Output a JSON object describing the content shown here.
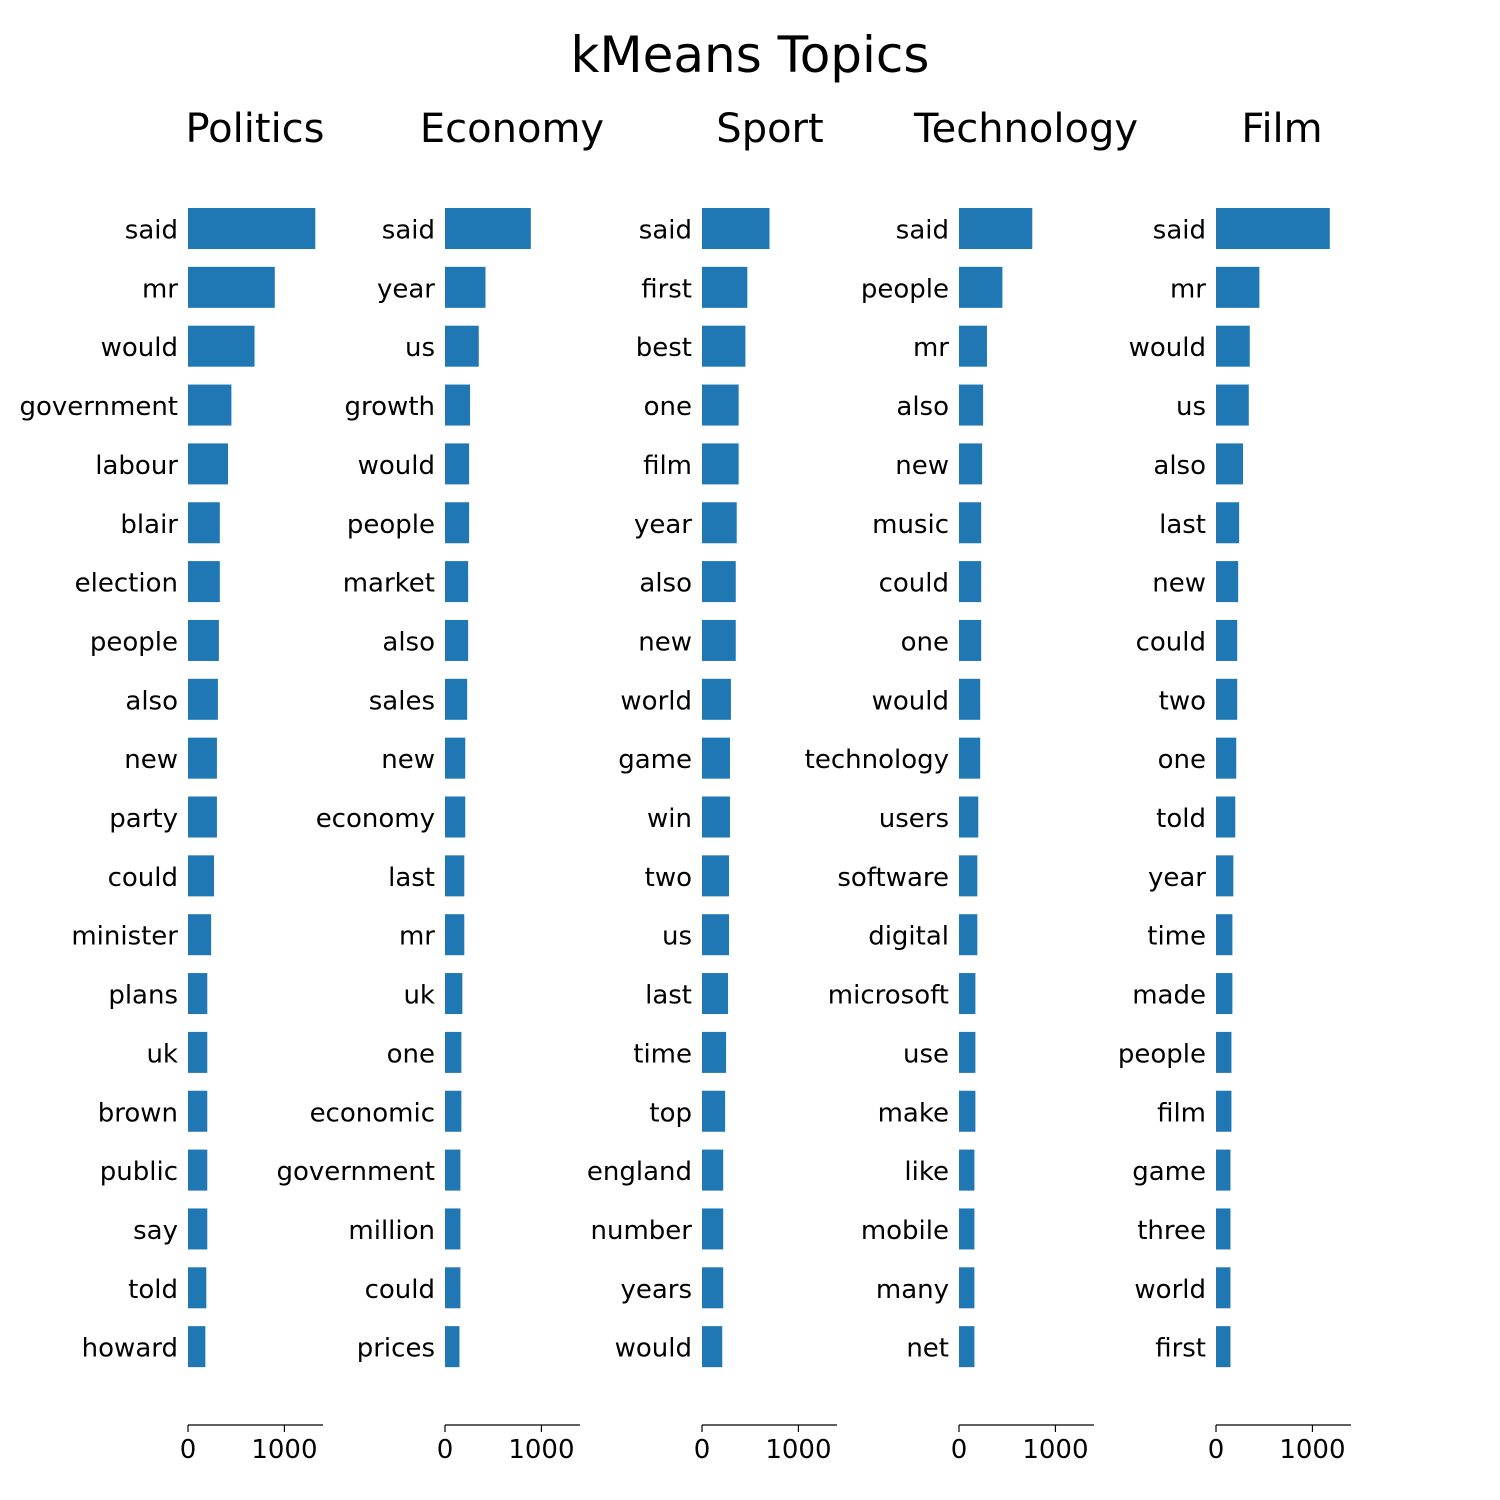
{
  "title": "kMeans Topics",
  "colors": {
    "bar": "#1f77b4",
    "axis": "#000000"
  },
  "chart_data": [
    {
      "type": "bar",
      "orientation": "horizontal",
      "title": "Politics",
      "categories": [
        "said",
        "mr",
        "would",
        "government",
        "labour",
        "blair",
        "election",
        "people",
        "also",
        "new",
        "party",
        "could",
        "minister",
        "plans",
        "uk",
        "brown",
        "public",
        "say",
        "told",
        "howard"
      ],
      "values": [
        1320,
        900,
        690,
        450,
        415,
        330,
        330,
        320,
        310,
        300,
        300,
        270,
        240,
        200,
        200,
        200,
        200,
        200,
        190,
        180
      ],
      "xlim": [
        0,
        1400
      ],
      "xticks": [
        "0",
        "1000"
      ],
      "grid": false
    },
    {
      "type": "bar",
      "orientation": "horizontal",
      "title": "Economy",
      "categories": [
        "said",
        "year",
        "us",
        "growth",
        "would",
        "people",
        "market",
        "also",
        "sales",
        "new",
        "economy",
        "last",
        "mr",
        "uk",
        "one",
        "economic",
        "government",
        "million",
        "could",
        "prices"
      ],
      "values": [
        890,
        420,
        350,
        260,
        250,
        250,
        240,
        240,
        230,
        210,
        210,
        200,
        200,
        180,
        170,
        170,
        160,
        160,
        160,
        150
      ],
      "xlim": [
        0,
        1400
      ],
      "xticks": [
        "0",
        "1000"
      ],
      "grid": false
    },
    {
      "type": "bar",
      "orientation": "horizontal",
      "title": "Sport",
      "categories": [
        "said",
        "first",
        "best",
        "one",
        "film",
        "year",
        "also",
        "new",
        "world",
        "game",
        "win",
        "two",
        "us",
        "last",
        "time",
        "top",
        "england",
        "number",
        "years",
        "would"
      ],
      "values": [
        700,
        470,
        450,
        380,
        380,
        360,
        350,
        350,
        300,
        290,
        290,
        280,
        280,
        270,
        250,
        240,
        220,
        220,
        220,
        210
      ],
      "xlim": [
        0,
        1400
      ],
      "xticks": [
        "0",
        "1000"
      ],
      "grid": false
    },
    {
      "type": "bar",
      "orientation": "horizontal",
      "title": "Technology",
      "categories": [
        "said",
        "people",
        "mr",
        "also",
        "new",
        "music",
        "could",
        "one",
        "would",
        "technology",
        "users",
        "software",
        "digital",
        "microsoft",
        "use",
        "make",
        "like",
        "mobile",
        "many",
        "net"
      ],
      "values": [
        760,
        450,
        290,
        250,
        240,
        230,
        230,
        230,
        220,
        220,
        200,
        190,
        190,
        170,
        170,
        170,
        160,
        160,
        160,
        160
      ],
      "xlim": [
        0,
        1400
      ],
      "xticks": [
        "0",
        "1000"
      ],
      "grid": false
    },
    {
      "type": "bar",
      "orientation": "horizontal",
      "title": "Film",
      "categories": [
        "said",
        "mr",
        "would",
        "us",
        "also",
        "last",
        "new",
        "could",
        "two",
        "one",
        "told",
        "year",
        "time",
        "made",
        "people",
        "film",
        "game",
        "three",
        "world",
        "first"
      ],
      "values": [
        1180,
        450,
        350,
        340,
        280,
        240,
        230,
        220,
        220,
        210,
        200,
        180,
        170,
        170,
        160,
        160,
        150,
        150,
        150,
        150
      ],
      "xlim": [
        0,
        1400
      ],
      "xticks": [
        "0",
        "1000"
      ],
      "grid": false
    }
  ]
}
